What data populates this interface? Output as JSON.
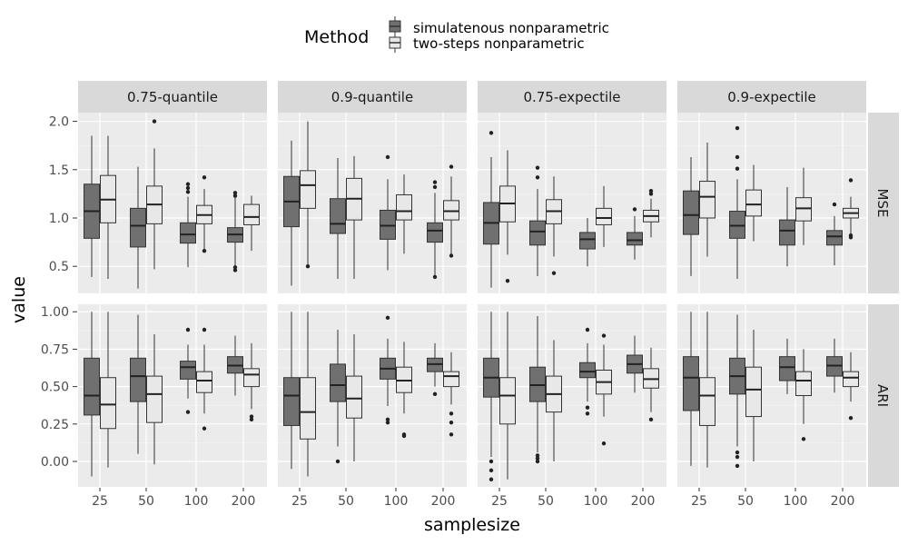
{
  "chart_data": {
    "type": "boxplot",
    "xlabel": "samplesize",
    "ylabel": "value",
    "categories": [
      "25",
      "50",
      "100",
      "200"
    ],
    "legend": {
      "title": "Method",
      "position": "top",
      "entries": [
        {
          "name": "simulatenous nonparametric",
          "color": "#707070"
        },
        {
          "name": "two-steps nonparametric",
          "color": "#e8e8e8"
        }
      ]
    },
    "columns": [
      "0.75-quantile",
      "0.9-quantile",
      "0.75-expectile",
      "0.9-expectile"
    ],
    "rows": [
      {
        "label": "MSE",
        "ylim": [
          0.22,
          2.09
        ],
        "yticks": [
          0.5,
          1.0,
          1.5,
          2.0
        ],
        "ytick_labels": [
          "0.5",
          "1.0",
          "1.5",
          "2.0"
        ]
      },
      {
        "label": "ARI",
        "ylim": [
          -0.17,
          1.05
        ],
        "yticks": [
          0.0,
          0.25,
          0.5,
          0.75,
          1.0
        ],
        "ytick_labels": [
          "0.00",
          "0.25",
          "0.50",
          "0.75",
          "1.00"
        ]
      }
    ],
    "panels": [
      {
        "row": "MSE",
        "col": "0.75-quantile",
        "boxes": [
          {
            "series": 0,
            "cat": "25",
            "whislo": 0.39,
            "q1": 0.79,
            "med": 1.07,
            "q3": 1.35,
            "whishi": 1.85,
            "fliers": []
          },
          {
            "series": 1,
            "cat": "25",
            "whislo": 0.37,
            "q1": 0.95,
            "med": 1.19,
            "q3": 1.44,
            "whishi": 1.85,
            "fliers": []
          },
          {
            "series": 0,
            "cat": "50",
            "whislo": 0.27,
            "q1": 0.7,
            "med": 0.92,
            "q3": 1.1,
            "whishi": 1.53,
            "fliers": []
          },
          {
            "series": 1,
            "cat": "50",
            "whislo": 0.47,
            "q1": 0.94,
            "med": 1.14,
            "q3": 1.33,
            "whishi": 1.72,
            "fliers": [
              2.0
            ]
          },
          {
            "series": 0,
            "cat": "100",
            "whislo": 0.49,
            "q1": 0.74,
            "med": 0.83,
            "q3": 0.95,
            "whishi": 1.22,
            "fliers": [
              1.27,
              1.31,
              1.35
            ]
          },
          {
            "series": 1,
            "cat": "100",
            "whislo": 0.66,
            "q1": 0.94,
            "med": 1.03,
            "q3": 1.13,
            "whishi": 1.3,
            "fliers": [
              1.42,
              0.66
            ]
          },
          {
            "series": 0,
            "cat": "200",
            "whislo": 0.49,
            "q1": 0.75,
            "med": 0.83,
            "q3": 0.9,
            "whishi": 1.22,
            "fliers": [
              1.26,
              1.23,
              0.49,
              0.46
            ]
          },
          {
            "series": 1,
            "cat": "200",
            "whislo": 0.66,
            "q1": 0.93,
            "med": 1.01,
            "q3": 1.14,
            "whishi": 1.23,
            "fliers": []
          }
        ]
      },
      {
        "row": "MSE",
        "col": "0.9-quantile",
        "boxes": [
          {
            "series": 0,
            "cat": "25",
            "whislo": 0.3,
            "q1": 0.91,
            "med": 1.17,
            "q3": 1.43,
            "whishi": 1.8,
            "fliers": []
          },
          {
            "series": 1,
            "cat": "25",
            "whislo": 0.5,
            "q1": 1.1,
            "med": 1.34,
            "q3": 1.49,
            "whishi": 2.0,
            "fliers": [
              0.5
            ]
          },
          {
            "series": 0,
            "cat": "50",
            "whislo": 0.37,
            "q1": 0.84,
            "med": 0.94,
            "q3": 1.2,
            "whishi": 1.62,
            "fliers": []
          },
          {
            "series": 1,
            "cat": "50",
            "whislo": 0.37,
            "q1": 0.98,
            "med": 1.2,
            "q3": 1.41,
            "whishi": 1.64,
            "fliers": []
          },
          {
            "series": 0,
            "cat": "100",
            "whislo": 0.46,
            "q1": 0.78,
            "med": 0.92,
            "q3": 1.08,
            "whishi": 1.4,
            "fliers": [
              1.63
            ]
          },
          {
            "series": 1,
            "cat": "100",
            "whislo": 0.63,
            "q1": 0.98,
            "med": 1.07,
            "q3": 1.24,
            "whishi": 1.45,
            "fliers": []
          },
          {
            "series": 0,
            "cat": "200",
            "whislo": 0.39,
            "q1": 0.75,
            "med": 0.87,
            "q3": 0.95,
            "whishi": 1.26,
            "fliers": [
              1.37,
              1.32,
              0.39
            ]
          },
          {
            "series": 1,
            "cat": "200",
            "whislo": 0.6,
            "q1": 0.98,
            "med": 1.07,
            "q3": 1.18,
            "whishi": 1.43,
            "fliers": [
              1.53,
              0.61
            ]
          }
        ]
      },
      {
        "row": "MSE",
        "col": "0.75-expectile",
        "boxes": [
          {
            "series": 0,
            "cat": "25",
            "whislo": 0.28,
            "q1": 0.73,
            "med": 0.95,
            "q3": 1.16,
            "whishi": 1.63,
            "fliers": [
              1.88
            ]
          },
          {
            "series": 1,
            "cat": "25",
            "whislo": 0.62,
            "q1": 0.96,
            "med": 1.15,
            "q3": 1.33,
            "whishi": 1.7,
            "fliers": [
              0.35
            ]
          },
          {
            "series": 0,
            "cat": "50",
            "whislo": 0.4,
            "q1": 0.72,
            "med": 0.86,
            "q3": 0.97,
            "whishi": 1.3,
            "fliers": [
              1.52,
              1.42
            ]
          },
          {
            "series": 1,
            "cat": "50",
            "whislo": 0.6,
            "q1": 0.94,
            "med": 1.07,
            "q3": 1.19,
            "whishi": 1.43,
            "fliers": [
              0.43
            ]
          },
          {
            "series": 0,
            "cat": "100",
            "whislo": 0.5,
            "q1": 0.68,
            "med": 0.78,
            "q3": 0.85,
            "whishi": 1.0,
            "fliers": []
          },
          {
            "series": 1,
            "cat": "100",
            "whislo": 0.7,
            "q1": 0.93,
            "med": 1.0,
            "q3": 1.1,
            "whishi": 1.33,
            "fliers": []
          },
          {
            "series": 0,
            "cat": "200",
            "whislo": 0.57,
            "q1": 0.72,
            "med": 0.77,
            "q3": 0.85,
            "whishi": 1.02,
            "fliers": [
              1.09
            ]
          },
          {
            "series": 1,
            "cat": "200",
            "whislo": 0.8,
            "q1": 0.96,
            "med": 1.02,
            "q3": 1.08,
            "whishi": 1.2,
            "fliers": [
              1.28,
              1.25
            ]
          }
        ]
      },
      {
        "row": "MSE",
        "col": "0.9-expectile",
        "boxes": [
          {
            "series": 0,
            "cat": "25",
            "whislo": 0.4,
            "q1": 0.83,
            "med": 1.03,
            "q3": 1.28,
            "whishi": 1.63,
            "fliers": []
          },
          {
            "series": 1,
            "cat": "25",
            "whislo": 0.6,
            "q1": 1.0,
            "med": 1.22,
            "q3": 1.38,
            "whishi": 1.78,
            "fliers": []
          },
          {
            "series": 0,
            "cat": "50",
            "whislo": 0.37,
            "q1": 0.79,
            "med": 0.92,
            "q3": 1.07,
            "whishi": 1.4,
            "fliers": [
              1.93,
              1.63,
              1.51
            ]
          },
          {
            "series": 1,
            "cat": "50",
            "whislo": 0.76,
            "q1": 1.02,
            "med": 1.14,
            "q3": 1.29,
            "whishi": 1.55,
            "fliers": []
          },
          {
            "series": 0,
            "cat": "100",
            "whislo": 0.5,
            "q1": 0.72,
            "med": 0.87,
            "q3": 0.98,
            "whishi": 1.32,
            "fliers": []
          },
          {
            "series": 1,
            "cat": "100",
            "whislo": 0.72,
            "q1": 0.97,
            "med": 1.1,
            "q3": 1.21,
            "whishi": 1.52,
            "fliers": []
          },
          {
            "series": 0,
            "cat": "200",
            "whislo": 0.51,
            "q1": 0.72,
            "med": 0.81,
            "q3": 0.87,
            "whishi": 1.02,
            "fliers": [
              1.14
            ]
          },
          {
            "series": 1,
            "cat": "200",
            "whislo": 0.83,
            "q1": 1.0,
            "med": 1.05,
            "q3": 1.1,
            "whishi": 1.22,
            "fliers": [
              1.39,
              0.82,
              0.8
            ]
          }
        ]
      },
      {
        "row": "ARI",
        "col": "0.75-quantile",
        "boxes": [
          {
            "series": 0,
            "cat": "25",
            "whislo": -0.1,
            "q1": 0.31,
            "med": 0.44,
            "q3": 0.69,
            "whishi": 1.0,
            "fliers": []
          },
          {
            "series": 1,
            "cat": "25",
            "whislo": -0.04,
            "q1": 0.22,
            "med": 0.38,
            "q3": 0.56,
            "whishi": 1.0,
            "fliers": []
          },
          {
            "series": 0,
            "cat": "50",
            "whislo": 0.05,
            "q1": 0.4,
            "med": 0.57,
            "q3": 0.69,
            "whishi": 0.98,
            "fliers": []
          },
          {
            "series": 1,
            "cat": "50",
            "whislo": -0.02,
            "q1": 0.26,
            "med": 0.45,
            "q3": 0.57,
            "whishi": 0.85,
            "fliers": []
          },
          {
            "series": 0,
            "cat": "100",
            "whislo": 0.42,
            "q1": 0.55,
            "med": 0.63,
            "q3": 0.67,
            "whishi": 0.78,
            "fliers": [
              0.88,
              0.33
            ]
          },
          {
            "series": 1,
            "cat": "100",
            "whislo": 0.32,
            "q1": 0.46,
            "med": 0.54,
            "q3": 0.6,
            "whishi": 0.78,
            "fliers": [
              0.88,
              0.22
            ]
          },
          {
            "series": 0,
            "cat": "200",
            "whislo": 0.44,
            "q1": 0.59,
            "med": 0.64,
            "q3": 0.7,
            "whishi": 0.84,
            "fliers": []
          },
          {
            "series": 1,
            "cat": "200",
            "whislo": 0.35,
            "q1": 0.5,
            "med": 0.58,
            "q3": 0.62,
            "whishi": 0.79,
            "fliers": [
              0.3,
              0.28
            ]
          }
        ]
      },
      {
        "row": "ARI",
        "col": "0.9-quantile",
        "boxes": [
          {
            "series": 0,
            "cat": "25",
            "whislo": -0.05,
            "q1": 0.24,
            "med": 0.44,
            "q3": 0.56,
            "whishi": 1.0,
            "fliers": []
          },
          {
            "series": 1,
            "cat": "25",
            "whislo": -0.1,
            "q1": 0.15,
            "med": 0.33,
            "q3": 0.56,
            "whishi": 1.0,
            "fliers": []
          },
          {
            "series": 0,
            "cat": "50",
            "whislo": 0.1,
            "q1": 0.4,
            "med": 0.51,
            "q3": 0.65,
            "whishi": 0.88,
            "fliers": [
              0.0
            ]
          },
          {
            "series": 1,
            "cat": "50",
            "whislo": 0.0,
            "q1": 0.29,
            "med": 0.42,
            "q3": 0.57,
            "whishi": 0.85,
            "fliers": []
          },
          {
            "series": 0,
            "cat": "100",
            "whislo": 0.37,
            "q1": 0.55,
            "med": 0.62,
            "q3": 0.69,
            "whishi": 0.82,
            "fliers": [
              0.96,
              0.28,
              0.26
            ]
          },
          {
            "series": 1,
            "cat": "100",
            "whislo": 0.32,
            "q1": 0.46,
            "med": 0.54,
            "q3": 0.63,
            "whishi": 0.8,
            "fliers": [
              0.18,
              0.17
            ]
          },
          {
            "series": 0,
            "cat": "200",
            "whislo": 0.5,
            "q1": 0.6,
            "med": 0.65,
            "q3": 0.69,
            "whishi": 0.79,
            "fliers": [
              0.45
            ]
          },
          {
            "series": 1,
            "cat": "200",
            "whislo": 0.38,
            "q1": 0.5,
            "med": 0.57,
            "q3": 0.6,
            "whishi": 0.73,
            "fliers": [
              0.32,
              0.26,
              0.18
            ]
          }
        ]
      },
      {
        "row": "ARI",
        "col": "0.75-expectile",
        "boxes": [
          {
            "series": 0,
            "cat": "25",
            "whislo": 0.03,
            "q1": 0.43,
            "med": 0.56,
            "q3": 0.69,
            "whishi": 1.0,
            "fliers": [
              0.0,
              -0.06,
              -0.12
            ]
          },
          {
            "series": 1,
            "cat": "25",
            "whislo": -0.12,
            "q1": 0.25,
            "med": 0.44,
            "q3": 0.56,
            "whishi": 1.0,
            "fliers": []
          },
          {
            "series": 0,
            "cat": "50",
            "whislo": 0.06,
            "q1": 0.4,
            "med": 0.51,
            "q3": 0.63,
            "whishi": 0.97,
            "fliers": [
              0.04,
              0.02,
              0.0
            ]
          },
          {
            "series": 1,
            "cat": "50",
            "whislo": 0.0,
            "q1": 0.33,
            "med": 0.45,
            "q3": 0.57,
            "whishi": 0.81,
            "fliers": []
          },
          {
            "series": 0,
            "cat": "100",
            "whislo": 0.4,
            "q1": 0.56,
            "med": 0.6,
            "q3": 0.66,
            "whishi": 0.79,
            "fliers": [
              0.88,
              0.36,
              0.32
            ]
          },
          {
            "series": 1,
            "cat": "100",
            "whislo": 0.3,
            "q1": 0.45,
            "med": 0.53,
            "q3": 0.61,
            "whishi": 0.78,
            "fliers": [
              0.84,
              0.12
            ]
          },
          {
            "series": 0,
            "cat": "200",
            "whislo": 0.46,
            "q1": 0.59,
            "med": 0.65,
            "q3": 0.71,
            "whishi": 0.84,
            "fliers": []
          },
          {
            "series": 1,
            "cat": "200",
            "whislo": 0.33,
            "q1": 0.49,
            "med": 0.55,
            "q3": 0.62,
            "whishi": 0.76,
            "fliers": [
              0.28
            ]
          }
        ]
      },
      {
        "row": "ARI",
        "col": "0.9-expectile",
        "boxes": [
          {
            "series": 0,
            "cat": "25",
            "whislo": -0.03,
            "q1": 0.34,
            "med": 0.56,
            "q3": 0.7,
            "whishi": 1.0,
            "fliers": []
          },
          {
            "series": 1,
            "cat": "25",
            "whislo": -0.04,
            "q1": 0.24,
            "med": 0.44,
            "q3": 0.56,
            "whishi": 1.0,
            "fliers": []
          },
          {
            "series": 0,
            "cat": "50",
            "whislo": 0.1,
            "q1": 0.45,
            "med": 0.57,
            "q3": 0.69,
            "whishi": 0.98,
            "fliers": [
              0.06,
              0.03,
              -0.03
            ]
          },
          {
            "series": 1,
            "cat": "50",
            "whislo": 0.0,
            "q1": 0.3,
            "med": 0.48,
            "q3": 0.63,
            "whishi": 0.88,
            "fliers": []
          },
          {
            "series": 0,
            "cat": "100",
            "whislo": 0.45,
            "q1": 0.54,
            "med": 0.63,
            "q3": 0.7,
            "whishi": 0.82,
            "fliers": []
          },
          {
            "series": 1,
            "cat": "100",
            "whislo": 0.25,
            "q1": 0.44,
            "med": 0.54,
            "q3": 0.6,
            "whishi": 0.75,
            "fliers": [
              0.15
            ]
          },
          {
            "series": 0,
            "cat": "200",
            "whislo": 0.46,
            "q1": 0.57,
            "med": 0.64,
            "q3": 0.7,
            "whishi": 0.82,
            "fliers": []
          },
          {
            "series": 1,
            "cat": "200",
            "whislo": 0.4,
            "q1": 0.5,
            "med": 0.56,
            "q3": 0.6,
            "whishi": 0.73,
            "fliers": [
              0.29
            ]
          }
        ]
      }
    ]
  }
}
